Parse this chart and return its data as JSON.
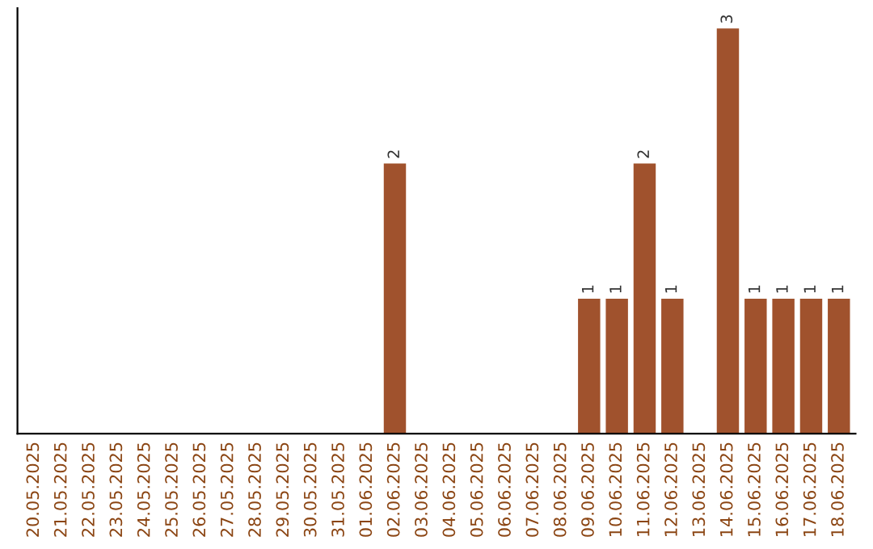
{
  "chart_data": {
    "type": "bar",
    "categories": [
      "20.05.2025",
      "21.05.2025",
      "22.05.2025",
      "23.05.2025",
      "24.05.2025",
      "25.05.2025",
      "26.05.2025",
      "27.05.2025",
      "28.05.2025",
      "29.05.2025",
      "30.05.2025",
      "31.05.2025",
      "01.06.2025",
      "02.06.2025",
      "03.06.2025",
      "04.06.2025",
      "05.06.2025",
      "06.06.2025",
      "07.06.2025",
      "08.06.2025",
      "09.06.2025",
      "10.06.2025",
      "11.06.2025",
      "12.06.2025",
      "13.06.2025",
      "14.06.2025",
      "15.06.2025",
      "16.06.2025",
      "17.06.2025",
      "18.06.2025"
    ],
    "values": [
      null,
      null,
      null,
      null,
      null,
      null,
      null,
      null,
      null,
      null,
      null,
      null,
      null,
      2,
      null,
      null,
      null,
      null,
      null,
      null,
      1,
      1,
      2,
      1,
      null,
      3,
      1,
      1,
      1,
      1
    ],
    "data_labels": true,
    "color": "#a0522d",
    "tick_labels": "x",
    "grid": false,
    "legend": false
  }
}
